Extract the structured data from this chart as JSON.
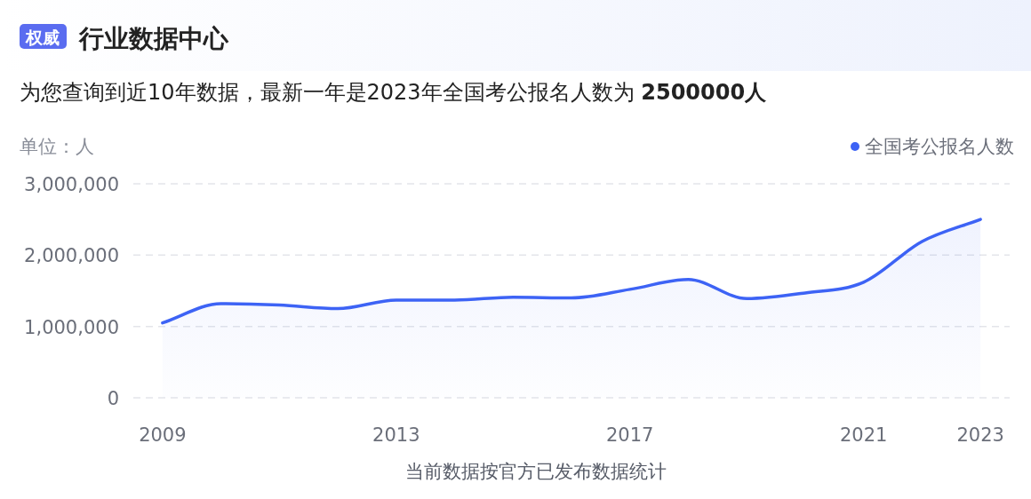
{
  "chart_data": {
    "type": "area",
    "title": "行业数据中心",
    "subtitle": "为您查询到近10年数据，最新一年是2023年全国考公报名人数为 **2500000人**",
    "annotations": [
      "权威"
    ],
    "ylabel": "单位：人",
    "xlabel": "当前数据按官方已发布数据统计",
    "x": [
      2009,
      2010,
      2011,
      2012,
      2013,
      2014,
      2015,
      2016,
      2017,
      2018,
      2019,
      2020,
      2021,
      2022,
      2023
    ],
    "series": [
      {
        "name": "全国考公报名人数",
        "color": "#3d63f5",
        "values": [
          1050000,
          1320000,
          1300000,
          1250000,
          1370000,
          1370000,
          1410000,
          1400000,
          1520000,
          1660000,
          1390000,
          1470000,
          1620000,
          2190000,
          2500000
        ]
      }
    ],
    "xlim": [
      2008.5,
      2023.5
    ],
    "xticks": [
      2009,
      2013,
      2017,
      2021,
      2023
    ],
    "ylim": [
      0,
      3000000
    ],
    "yticks": [
      {
        "value": 0,
        "label": "0"
      },
      {
        "value": 1000000,
        "label": "1,000,000"
      },
      {
        "value": 2000000,
        "label": "2,000,000"
      },
      {
        "value": 3000000,
        "label": "3,000,000"
      }
    ],
    "grid": "y",
    "legend": "top right",
    "marker": "none",
    "line_style": "solid"
  }
}
